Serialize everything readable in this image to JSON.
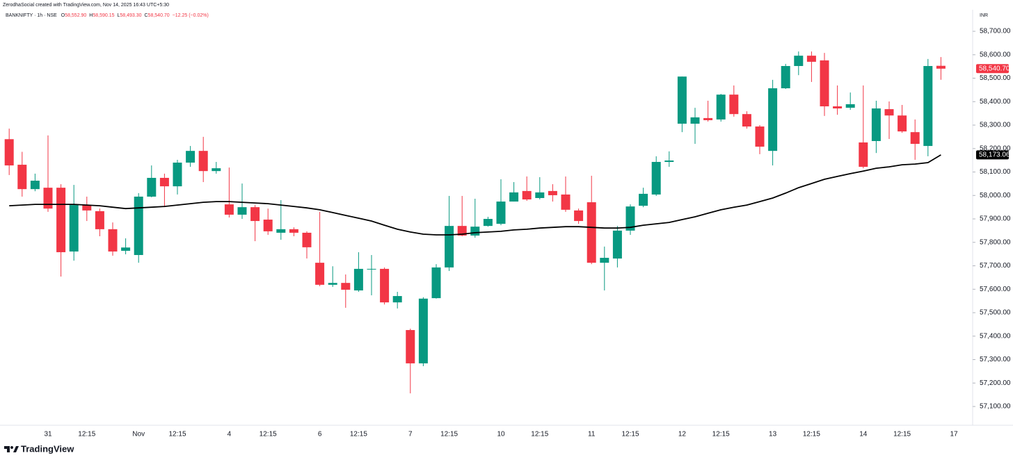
{
  "header": {
    "credit": "ZerodhaSocial created with TradingView.com, Nov 14, 2025 16:43 UTC+5:30",
    "symbol": "BANKNIFTY · 1h · NSE",
    "ohlc": [
      {
        "label": "O",
        "value": "58,552.90"
      },
      {
        "label": "H",
        "value": "58,590.15"
      },
      {
        "label": "L",
        "value": "58,493.30"
      },
      {
        "label": "C",
        "value": "58,540.70"
      }
    ],
    "change": "−12.25 (−0.02%)"
  },
  "currency": "INR",
  "brand": "TradingView",
  "chart_data": {
    "type": "candlestick",
    "up_color": "#089981",
    "down_color": "#f23645",
    "categories": [
      null,
      null,
      null,
      "31",
      null,
      null,
      "12:15",
      null,
      null,
      null,
      "Nov",
      null,
      null,
      "12:15",
      null,
      null,
      null,
      "4",
      null,
      null,
      "12:15",
      null,
      null,
      null,
      "6",
      null,
      null,
      "12:15",
      null,
      null,
      null,
      "7",
      null,
      null,
      "12:15",
      null,
      null,
      null,
      "10",
      null,
      null,
      "12:15",
      null,
      null,
      null,
      "11",
      null,
      null,
      "12:15",
      null,
      null,
      null,
      "12",
      null,
      null,
      "12:15",
      null,
      null,
      null,
      "13",
      null,
      null,
      "12:15",
      null,
      null,
      null,
      "14",
      null,
      null,
      "12:15",
      null,
      null,
      null,
      "17"
    ],
    "open": [
      58240,
      58131,
      58027,
      58033,
      58033,
      57761,
      57959,
      57933,
      57856,
      57764,
      57746,
      57995,
      58075,
      58039,
      58140,
      58190,
      58104,
      57962,
      57918,
      57950,
      57897,
      57841,
      57856,
      57841,
      57713,
      57619,
      57627,
      57595,
      57684,
      57687,
      57544,
      57426,
      57284,
      57562,
      57693,
      57870,
      57829,
      57870,
      57879,
      57974,
      58019,
      57989,
      58019,
      58004,
      57936,
      57971,
      57713,
      57731,
      57850,
      57956,
      58004,
      58143,
      58306,
      58306,
      58330,
      58324,
      58430,
      58347,
      58294,
      58190,
      58457,
      58552,
      58596,
      58576,
      58380,
      58374,
      58226,
      58232,
      58368,
      58341,
      58270,
      58211,
      58552.9,
      null
    ],
    "high": [
      58285,
      58186,
      58093,
      58256,
      58048,
      58045,
      57995,
      57944,
      57885,
      57817,
      58010,
      58128,
      58093,
      58152,
      58211,
      58250,
      58143,
      58119,
      58051,
      57959,
      57944,
      57980,
      57864,
      57847,
      57930,
      57698,
      57663,
      57758,
      57746,
      57693,
      57589,
      57432,
      57566,
      57707,
      57998,
      57998,
      57986,
      57909,
      58069,
      58057,
      58081,
      58078,
      58048,
      58081,
      57944,
      58084,
      57782,
      57870,
      57962,
      58033,
      58167,
      58188,
      58507,
      58374,
      58404,
      58433,
      58469,
      58359,
      58300,
      58493,
      58561,
      58614,
      58614,
      58608,
      58469,
      58439,
      58469,
      58404,
      58401,
      58386,
      58324,
      58582,
      58590.15,
      null
    ],
    "low": [
      58087,
      57995,
      58018,
      57930,
      57654,
      57722,
      57891,
      57826,
      57743,
      57749,
      57713,
      57992,
      57950,
      58004,
      58122,
      58057,
      58093,
      57906,
      57900,
      57805,
      57832,
      57811,
      57826,
      57731,
      57613,
      57610,
      57521,
      57589,
      57574,
      57535,
      57518,
      57156,
      57272,
      57560,
      57678,
      57826,
      57820,
      57867,
      57873,
      57974,
      57977,
      57983,
      57974,
      57930,
      57879,
      57707,
      57595,
      57693,
      57832,
      57950,
      57998,
      58122,
      58270,
      58220,
      58315,
      58315,
      58336,
      58285,
      58176,
      58128,
      58454,
      58513,
      58484,
      58339,
      58344,
      58365,
      58116,
      58181,
      58241,
      58267,
      58152,
      58167,
      58493.3,
      null
    ],
    "close": [
      58128,
      58027,
      58063,
      57944,
      57758,
      57959,
      57936,
      57856,
      57761,
      57778,
      57995,
      58075,
      58039,
      58140,
      58190,
      58104,
      58116,
      57918,
      57950,
      57891,
      57847,
      57856,
      57841,
      57779,
      57619,
      57627,
      57598,
      57687,
      57687,
      57544,
      57571,
      57284,
      57560,
      57693,
      57870,
      57829,
      57867,
      57900,
      57974,
      58013,
      57983,
      58013,
      58001,
      57939,
      57891,
      57713,
      57734,
      57850,
      57953,
      58007,
      58143,
      58149,
      58507,
      58333,
      58321,
      58430,
      58347,
      58294,
      58208,
      58457,
      58552,
      58596,
      58570,
      58380,
      58371,
      58389,
      58122,
      58371,
      58341,
      58273,
      58220,
      58552,
      58540.7,
      null
    ],
    "last_close_label": "58,540.70",
    "series": [
      {
        "color": "#000000",
        "last_value_label": "58,173.06",
        "values": [
          57956,
          57959,
          57962,
          57962,
          57962,
          57962,
          57959,
          57956,
          57950,
          57944,
          57947,
          57950,
          57953,
          57959,
          57965,
          57971,
          57974,
          57974,
          57971,
          57968,
          57965,
          57959,
          57953,
          57947,
          57939,
          57927,
          57915,
          57903,
          57891,
          57873,
          57856,
          57844,
          57835,
          57832,
          57832,
          57835,
          57841,
          57844,
          57847,
          57853,
          57856,
          57861,
          57864,
          57867,
          57867,
          57864,
          57861,
          57861,
          57864,
          57873,
          57879,
          57885,
          57897,
          57909,
          57924,
          57939,
          57950,
          57959,
          57974,
          57989,
          58010,
          58033,
          58051,
          58069,
          58081,
          58093,
          58104,
          58116,
          58122,
          58131,
          58134,
          58140,
          58173.06,
          null
        ]
      }
    ],
    "ylim": [
      57020,
      58792
    ],
    "yticks": [
      {
        "value": 57100,
        "label": "57,100.00"
      },
      {
        "value": 57200,
        "label": "57,200.00"
      },
      {
        "value": 57300,
        "label": "57,300.00"
      },
      {
        "value": 57400,
        "label": "57,400.00"
      },
      {
        "value": 57500,
        "label": "57,500.00"
      },
      {
        "value": 57600,
        "label": "57,600.00"
      },
      {
        "value": 57700,
        "label": "57,700.00"
      },
      {
        "value": 57800,
        "label": "57,800.00"
      },
      {
        "value": 57900,
        "label": "57,900.00"
      },
      {
        "value": 58000,
        "label": "58,000.00"
      },
      {
        "value": 58100,
        "label": "58,100.00"
      },
      {
        "value": 58200,
        "label": "58,200.00"
      },
      {
        "value": 58300,
        "label": "58,300.00"
      },
      {
        "value": 58400,
        "label": "58,400.00"
      },
      {
        "value": 58500,
        "label": "58,500.00"
      },
      {
        "value": 58600,
        "label": "58,600.00"
      },
      {
        "value": 58700,
        "label": "58,700.00"
      }
    ],
    "grid": false
  }
}
